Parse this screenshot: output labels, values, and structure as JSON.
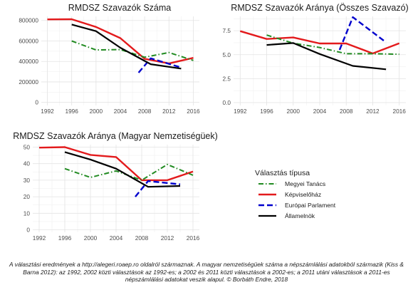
{
  "colors": {
    "Megyei Tanács": "#228b22",
    "Képviselőház": "#e31a1c",
    "Európai Parlament": "#0000cd",
    "Államelnök": "#000000"
  },
  "chart_data": [
    {
      "type": "line",
      "title": "RMDSZ Szavazók Száma",
      "xlim": [
        1991,
        2017
      ],
      "ylim": [
        -30000,
        840000
      ],
      "x_ticks": [
        1992,
        1996,
        2000,
        2004,
        2008,
        2012,
        2016
      ],
      "y_ticks": [
        0,
        200000,
        400000,
        600000,
        800000
      ],
      "y_tick_labels": [
        "0",
        "200000",
        "400000",
        "600000",
        "800000"
      ],
      "grid": true,
      "series": [
        {
          "name": "Képviselőház",
          "x": [
            1992,
            1996,
            2000,
            2004,
            2008,
            2012,
            2016
          ],
          "y": [
            811000,
            812000,
            737000,
            628000,
            425000,
            380000,
            435000
          ]
        },
        {
          "name": "Megyei Tanács",
          "x": [
            1996,
            2000,
            2004,
            2008,
            2012,
            2016
          ],
          "y": [
            600000,
            512000,
            516000,
            441000,
            487000,
            410000
          ]
        },
        {
          "name": "Európai Parlament",
          "x": [
            2007,
            2009,
            2014
          ],
          "y": [
            290000,
            430000,
            340000
          ]
        },
        {
          "name": "Államelnök",
          "x": [
            1996,
            2000,
            2004,
            2009,
            2014
          ],
          "y": [
            761000,
            696000,
            534000,
            373000,
            330000
          ]
        }
      ]
    },
    {
      "type": "line",
      "title": "RMDSZ Szavazók Aránya (Összes Szavazó)",
      "xlim": [
        1991,
        2017
      ],
      "ylim": [
        -0.3,
        9.0
      ],
      "x_ticks": [
        1992,
        1996,
        2000,
        2004,
        2008,
        2012,
        2016
      ],
      "y_ticks": [
        0,
        2.5,
        5,
        7.5
      ],
      "y_tick_labels": [
        "0.0",
        "2.5",
        "5.0",
        "7.5"
      ],
      "grid": true,
      "series": [
        {
          "name": "Képviselőház",
          "x": [
            1992,
            1996,
            2000,
            2004,
            2008,
            2012,
            2016
          ],
          "y": [
            7.46,
            6.64,
            6.8,
            6.17,
            6.17,
            5.13,
            6.19
          ]
        },
        {
          "name": "Megyei Tanács",
          "x": [
            1996,
            2000,
            2004,
            2008,
            2012,
            2016
          ],
          "y": [
            7.05,
            6.2,
            5.75,
            5.1,
            5.1,
            5.05
          ]
        },
        {
          "name": "Európai Parlament",
          "x": [
            2007,
            2009,
            2014
          ],
          "y": [
            5.5,
            8.92,
            6.29
          ]
        },
        {
          "name": "Államelnök",
          "x": [
            1996,
            2000,
            2004,
            2009,
            2014
          ],
          "y": [
            6.02,
            6.22,
            5.07,
            3.83,
            3.47
          ]
        }
      ]
    },
    {
      "type": "line",
      "title": "RMDSZ Szavazók Aránya (Magyar Nemzetiségüek)",
      "xlim": [
        1991,
        2017
      ],
      "ylim": [
        -1.5,
        51.5
      ],
      "x_ticks": [
        1992,
        1996,
        2000,
        2004,
        2008,
        2012,
        2016
      ],
      "y_ticks": [
        0,
        10,
        20,
        30,
        40,
        50
      ],
      "y_tick_labels": [
        "0",
        "10",
        "20",
        "30",
        "40",
        "50"
      ],
      "grid": true,
      "series": [
        {
          "name": "Képviselőház",
          "x": [
            1992,
            1996,
            2000,
            2004,
            2008,
            2012,
            2016
          ],
          "y": [
            49.7,
            50.0,
            45.3,
            44.0,
            30.0,
            30.0,
            35.2
          ]
        },
        {
          "name": "Megyei Tanács",
          "x": [
            1996,
            2000,
            2004,
            2008,
            2012,
            2016
          ],
          "y": [
            37.0,
            31.7,
            35.6,
            30.0,
            39.5,
            33.0
          ]
        },
        {
          "name": "Európai Parlament",
          "x": [
            2007,
            2009,
            2014
          ],
          "y": [
            20.0,
            29.5,
            27.5
          ]
        },
        {
          "name": "Államelnök",
          "x": [
            1996,
            2000,
            2004,
            2009,
            2014
          ],
          "y": [
            47.0,
            42.5,
            37.0,
            26.0,
            26.5
          ]
        }
      ]
    }
  ],
  "legend": {
    "title": "Választás típusa",
    "items": [
      "Megyei Tanács",
      "Képviselőház",
      "Európai Parlament",
      "Államelnök"
    ]
  },
  "caption": "A választási eredmények a http://alegeri.roaep.ro oldalról származnak. A magyar nemzetiségüek száma a népszámlálási adatokból származik (Kiss & Barna 2012): az 1992, 2002 közti választások az 1992-es; a 2002 és 2011 közti választások a 2002-es; a 2011 utáni választások a 2011-es népszámlálási adatokat veszik alapul.  © Borbáth Endre, 2018"
}
